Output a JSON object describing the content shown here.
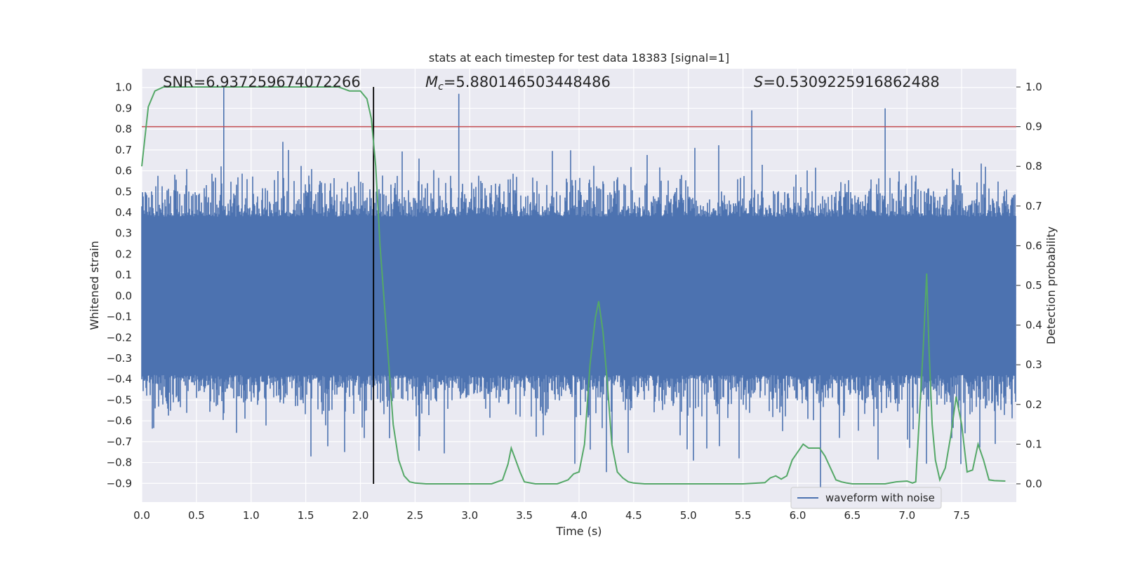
{
  "chart_data": {
    "type": "line",
    "title": "stats at each timestep for test data 18383 [signal=1]",
    "xlabel": "Time (s)",
    "ylabel_left": "Whitened strain",
    "ylabel_right": "Detection probability",
    "xlim": [
      0.0,
      8.0
    ],
    "ylim_left": [
      -0.99,
      1.09
    ],
    "ylim_right": [
      -0.046,
      1.046
    ],
    "x_ticks": [
      "0.0",
      "0.5",
      "1.0",
      "1.5",
      "2.0",
      "2.5",
      "3.0",
      "3.5",
      "4.0",
      "4.5",
      "5.0",
      "5.5",
      "6.0",
      "6.5",
      "7.0",
      "7.5"
    ],
    "y_ticks_left": [
      "1.0",
      "0.9",
      "0.8",
      "0.7",
      "0.6",
      "0.5",
      "0.4",
      "0.3",
      "0.2",
      "0.1",
      "0.0",
      "−0.1",
      "−0.2",
      "−0.3",
      "−0.4",
      "−0.5",
      "−0.6",
      "−0.7",
      "−0.8",
      "−0.9"
    ],
    "y_ticks_right": [
      "1.0",
      "0.9",
      "0.8",
      "0.7",
      "0.6",
      "0.5",
      "0.4",
      "0.3",
      "0.2",
      "0.1",
      "0.0"
    ],
    "grid": true,
    "legend_position": "lower-right",
    "annotations": {
      "snr": "SNR=6.937259674072266",
      "mc_symbol": "M",
      "mc_sub": "c",
      "mc_value": "=5.880146503448486",
      "s_symbol": "S",
      "s_value": "=0.5309225916862488"
    },
    "threshold_probability": 0.9,
    "vertical_marker_time": 2.12,
    "series": [
      {
        "name": "waveform with noise",
        "axis": "left",
        "color": "#4c72b0",
        "note_upper_envelope_peaks": {
          "x": [
            0.75,
            2.9,
            5.58,
            6.8
          ],
          "y": [
            1.0,
            0.97,
            0.89,
            0.9
          ]
        }
      },
      {
        "axis": "right",
        "color": "#55a868",
        "x": [
          0.0,
          0.06,
          0.12,
          0.2,
          0.4,
          0.7,
          1.0,
          1.3,
          1.6,
          1.8,
          1.9,
          2.0,
          2.06,
          2.1,
          2.14,
          2.18,
          2.22,
          2.26,
          2.3,
          2.35,
          2.4,
          2.45,
          2.5,
          2.6,
          2.8,
          3.0,
          3.2,
          3.3,
          3.35,
          3.38,
          3.42,
          3.46,
          3.5,
          3.6,
          3.8,
          3.9,
          3.95,
          4.0,
          4.05,
          4.1,
          4.15,
          4.18,
          4.22,
          4.26,
          4.3,
          4.35,
          4.4,
          4.45,
          4.5,
          4.6,
          5.0,
          5.5,
          5.7,
          5.75,
          5.8,
          5.85,
          5.9,
          5.95,
          6.0,
          6.05,
          6.1,
          6.15,
          6.2,
          6.25,
          6.3,
          6.35,
          6.4,
          6.45,
          6.5,
          6.6,
          6.8,
          6.9,
          7.0,
          7.05,
          7.08,
          7.12,
          7.15,
          7.18,
          7.2,
          7.23,
          7.26,
          7.3,
          7.35,
          7.4,
          7.45,
          7.5,
          7.55,
          7.6,
          7.65,
          7.7,
          7.75,
          7.8,
          7.9
        ],
        "values": [
          0.8,
          0.95,
          0.99,
          1.0,
          1.0,
          1.0,
          1.0,
          1.0,
          1.0,
          1.0,
          0.99,
          0.99,
          0.97,
          0.92,
          0.8,
          0.6,
          0.45,
          0.3,
          0.15,
          0.06,
          0.02,
          0.005,
          0.002,
          0.0,
          0.0,
          0.0,
          0.0,
          0.01,
          0.05,
          0.09,
          0.06,
          0.03,
          0.005,
          0.0,
          0.0,
          0.01,
          0.025,
          0.03,
          0.1,
          0.3,
          0.42,
          0.46,
          0.38,
          0.25,
          0.1,
          0.03,
          0.015,
          0.005,
          0.002,
          0.0,
          0.0,
          0.0,
          0.003,
          0.015,
          0.02,
          0.012,
          0.02,
          0.06,
          0.08,
          0.1,
          0.09,
          0.09,
          0.09,
          0.07,
          0.04,
          0.01,
          0.005,
          0.002,
          0.0,
          0.0,
          0.0,
          0.005,
          0.007,
          0.002,
          0.005,
          0.2,
          0.35,
          0.53,
          0.35,
          0.15,
          0.06,
          0.01,
          0.04,
          0.12,
          0.22,
          0.15,
          0.03,
          0.035,
          0.1,
          0.06,
          0.01,
          0.008,
          0.007
        ]
      }
    ],
    "legend_label": "waveform with noise"
  }
}
